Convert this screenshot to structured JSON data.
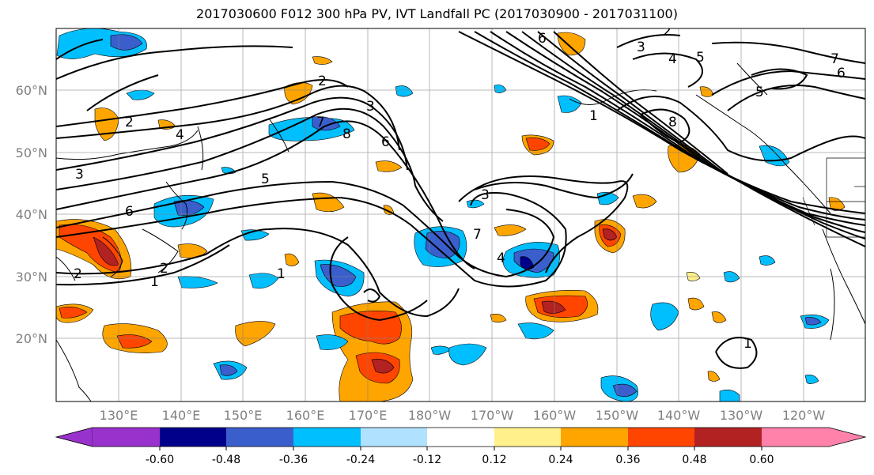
{
  "title": "2017030600 F012 300 hPa PV, IVT Landfall PC (2017030900 - 2017031100)",
  "lat_labels": [
    "60°N",
    "50°N",
    "40°N",
    "30°N",
    "20°N"
  ],
  "lon_labels": [
    "130°E",
    "140°E",
    "150°E",
    "160°E",
    "170°E",
    "180°W",
    "170°W",
    "160°W",
    "150°W",
    "140°W",
    "130°W",
    "120°W"
  ],
  "colorbar": {
    "colors": [
      "#9932cc",
      "#00008b",
      "#3a5fcd",
      "#00bfff",
      "#b0e2ff",
      "#ffffff",
      "#fff08c",
      "#ffa500",
      "#ff4500",
      "#b22222",
      "#ff82ab"
    ],
    "tick_labels": [
      "-0.60",
      "-0.48",
      "-0.36",
      "-0.24",
      "-0.12",
      "0.12",
      "0.24",
      "0.36",
      "0.48",
      "0.60"
    ]
  },
  "contour_labels": [
    "2",
    "2",
    "2",
    "3",
    "4",
    "5",
    "6",
    "6",
    "7",
    "8",
    "1",
    "1",
    "2",
    "3",
    "4",
    "5",
    "6",
    "7",
    "8",
    "3",
    "2",
    "1",
    "1",
    "3",
    "4",
    "5",
    "6",
    "7"
  ]
}
